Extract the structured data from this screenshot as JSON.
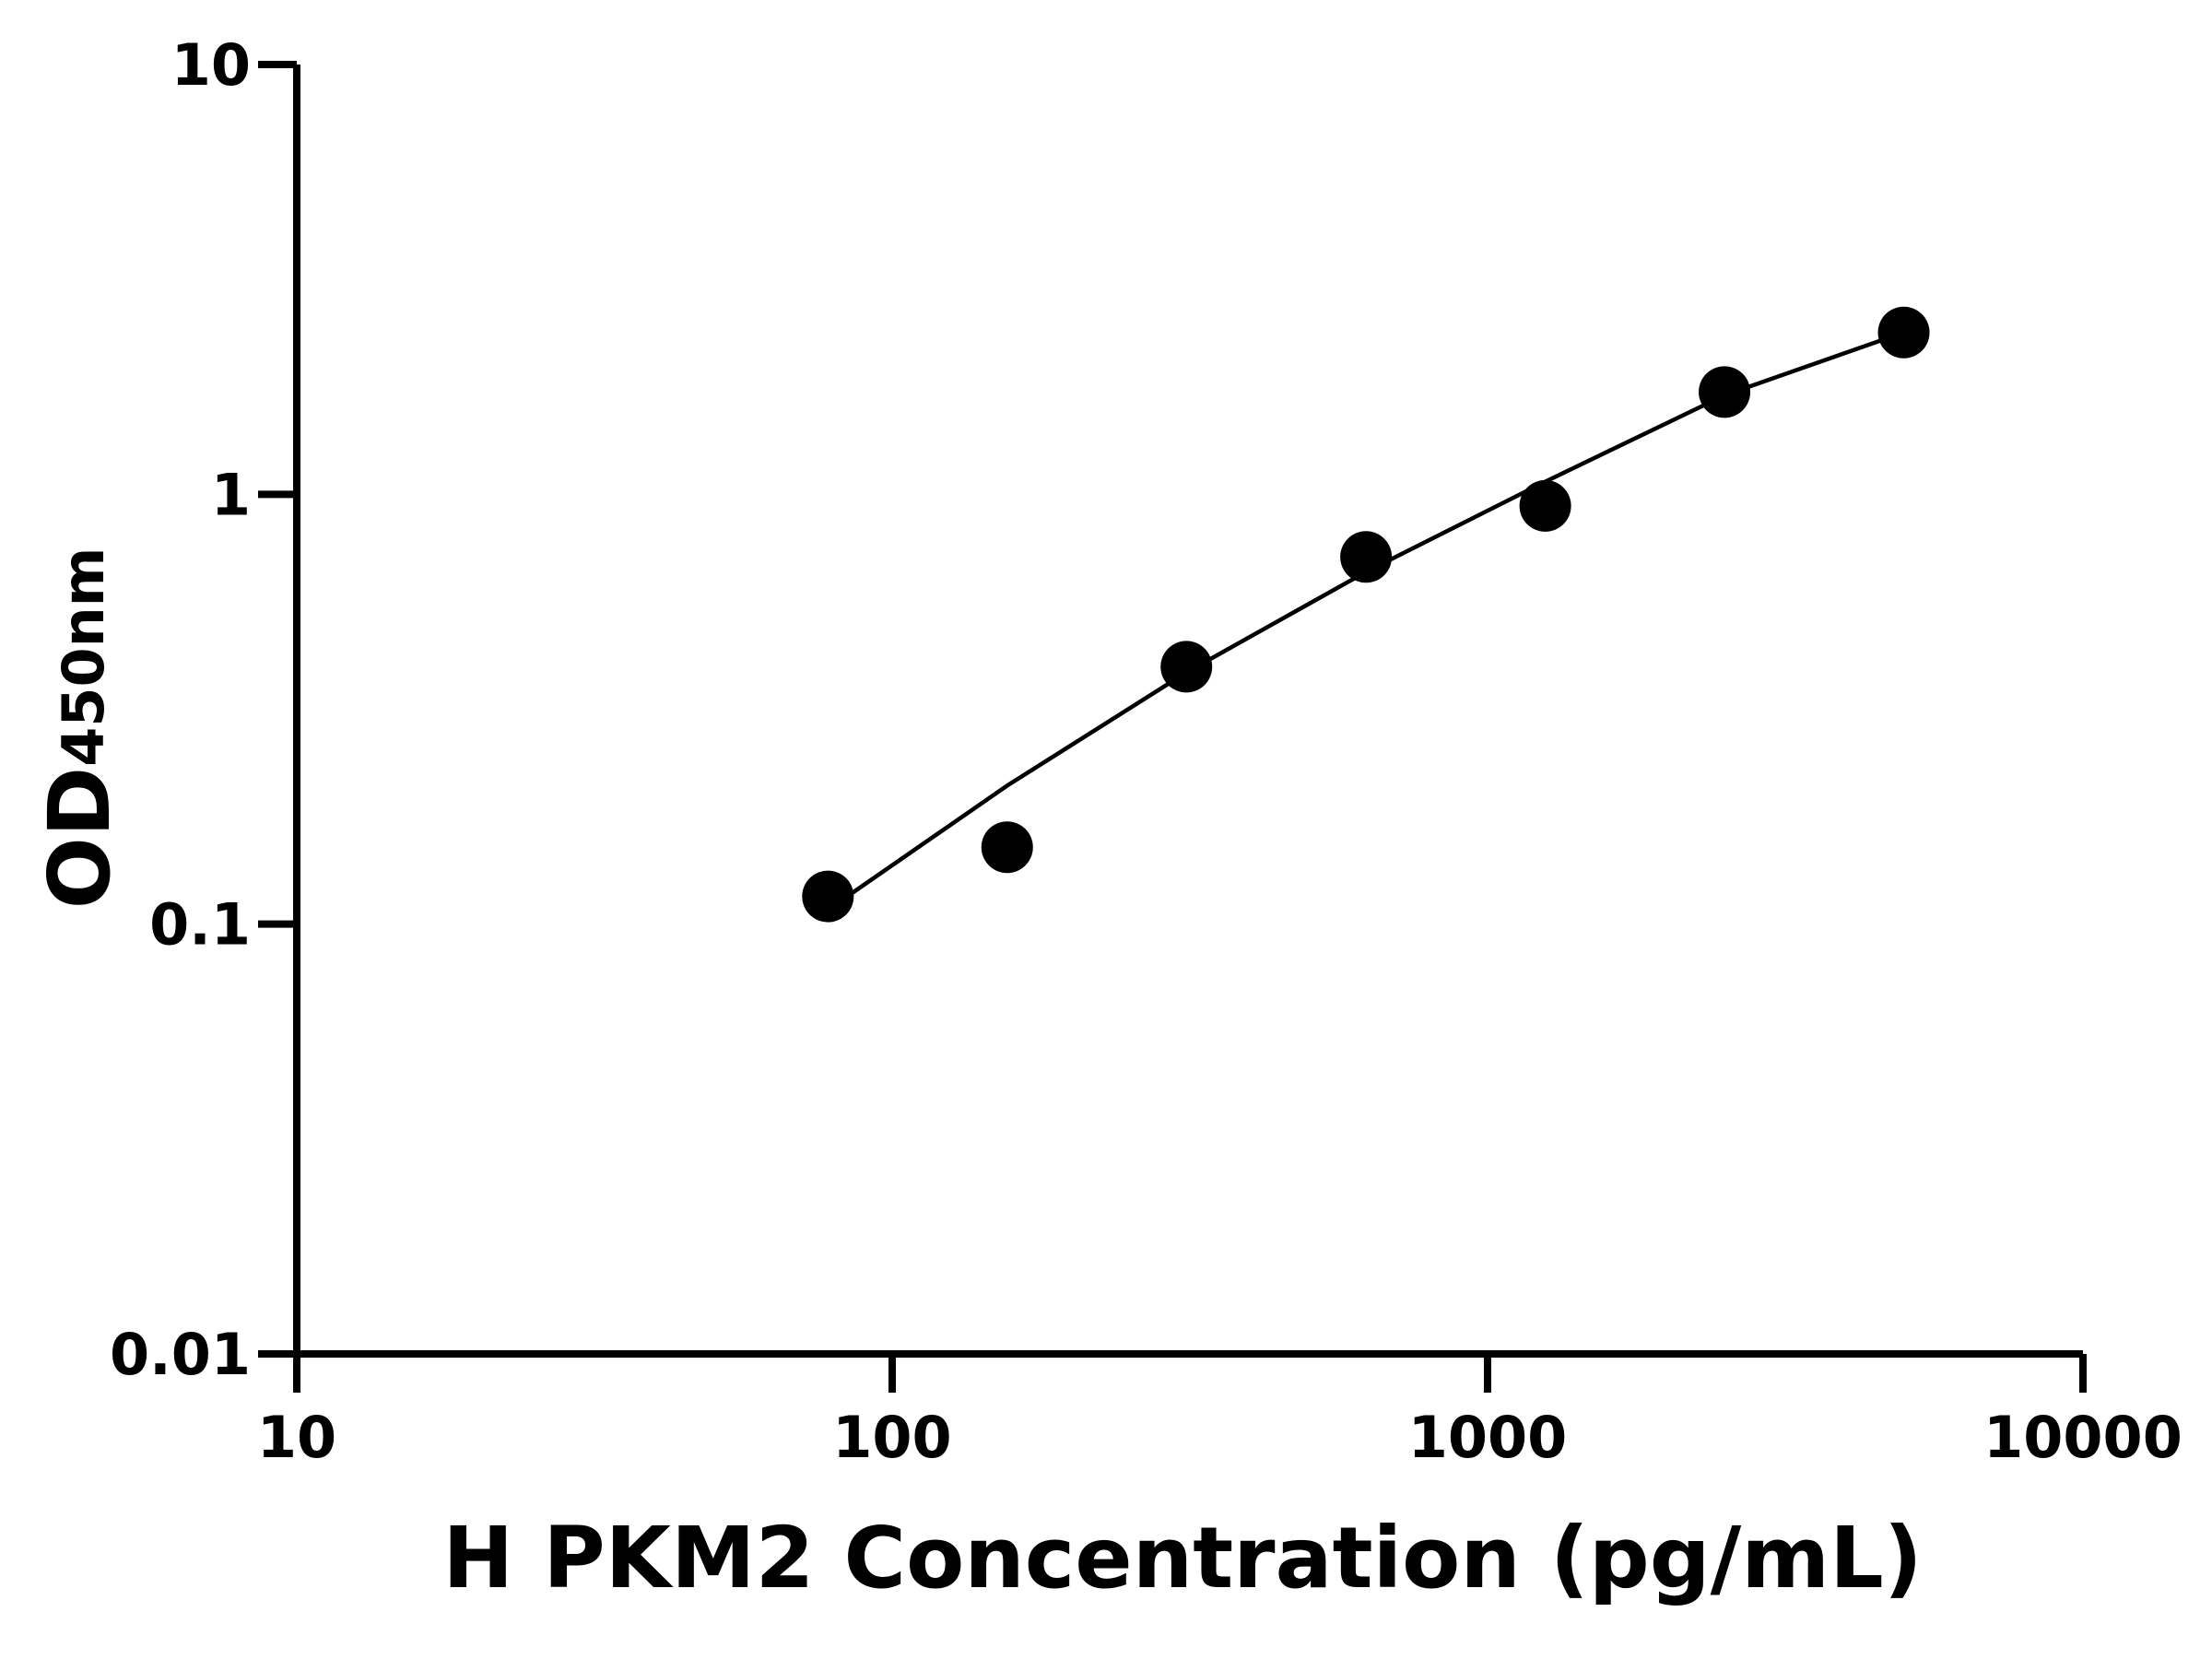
{
  "chart_data": {
    "type": "scatter",
    "xlabel": "H PKM2 Concentration (pg/mL)",
    "ylabel": "OD",
    "ylabel_subscript": "450nm",
    "xscale": "log",
    "yscale": "log",
    "xlim": [
      10,
      10000
    ],
    "xticks": [
      10,
      100,
      1000,
      10000
    ],
    "ylim": [
      0.01,
      10
    ],
    "yticks": [
      0.01,
      0.1,
      1,
      10
    ],
    "series": [
      {
        "color": "#000000",
        "x": [
          78,
          156,
          312,
          625,
          1250,
          2500,
          5000
        ],
        "values": [
          0.116,
          0.151,
          0.397,
          0.715,
          0.94,
          1.73,
          2.38
        ]
      }
    ],
    "fit": {
      "color": "#000000",
      "x": [
        78,
        156,
        312,
        625,
        1250,
        2500,
        5000
      ],
      "values": [
        0.108,
        0.21,
        0.385,
        0.66,
        1.07,
        1.7,
        2.38
      ]
    }
  }
}
